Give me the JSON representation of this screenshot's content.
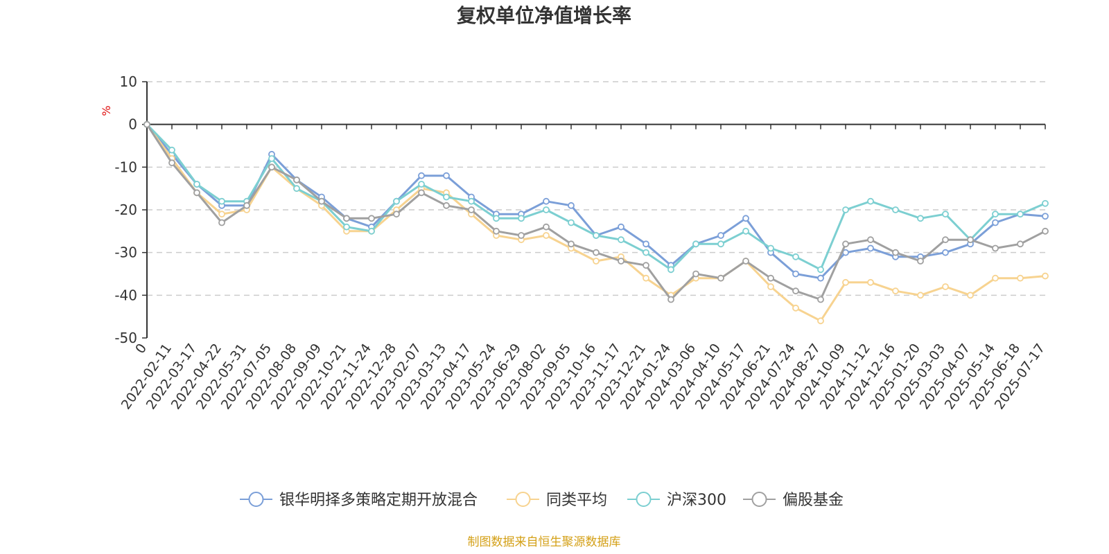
{
  "chart_data": {
    "type": "line",
    "title": "复权单位净值增长率",
    "ylabel": "%",
    "xlabel": "",
    "ylim": [
      -50,
      10
    ],
    "yticks": [
      10,
      0,
      -10,
      -20,
      -30,
      -40,
      -50
    ],
    "grid": true,
    "legend_position": "bottom",
    "x": [
      "0",
      "2022-02-11",
      "2022-03-17",
      "2022-04-22",
      "2022-05-31",
      "2022-07-05",
      "2022-08-08",
      "2022-09-09",
      "2022-10-21",
      "2022-11-24",
      "2022-12-28",
      "2023-02-07",
      "2023-03-13",
      "2023-04-17",
      "2023-05-24",
      "2023-06-29",
      "2023-08-02",
      "2023-09-05",
      "2023-10-16",
      "2023-11-17",
      "2023-12-21",
      "2024-01-24",
      "2024-03-06",
      "2024-04-10",
      "2024-05-17",
      "2024-06-21",
      "2024-07-24",
      "2024-08-27",
      "2024-10-09",
      "2024-11-12",
      "2024-12-16",
      "2025-01-20",
      "2025-03-03",
      "2025-04-07",
      "2025-05-14",
      "2025-06-18",
      "2025-07-17"
    ],
    "series": [
      {
        "name": "银华明择多策略定期开放混合",
        "color": "#7b9fd8",
        "values": [
          0,
          -7,
          -14,
          -19,
          -19,
          -7,
          -13,
          -17,
          -22,
          -24,
          -18,
          -12,
          -12,
          -17,
          -21,
          -21,
          -18,
          -19,
          -26,
          -24,
          -28,
          -33,
          -28,
          -26,
          -22,
          -30,
          -35,
          -36,
          -30,
          -29,
          -31,
          -31,
          -30,
          -28,
          -23,
          -21,
          -21.5
        ]
      },
      {
        "name": "同类平均",
        "color": "#f7d390",
        "values": [
          0,
          -8,
          -16,
          -21,
          -20,
          -10,
          -15,
          -19,
          -25,
          -25,
          -20,
          -15,
          -16,
          -21,
          -26,
          -27,
          -26,
          -29,
          -32,
          -31,
          -36,
          -40,
          -36,
          -36,
          -32,
          -38,
          -43,
          -46,
          -37,
          -37,
          -39,
          -40,
          -38,
          -40,
          -36,
          -36,
          -35.5
        ]
      },
      {
        "name": "沪深300",
        "color": "#7ccfd1",
        "values": [
          0,
          -6,
          -14,
          -18,
          -18,
          -8,
          -15,
          -18,
          -24,
          -25,
          -18,
          -14,
          -17,
          -18,
          -22,
          -22,
          -20,
          -23,
          -26,
          -27,
          -30,
          -34,
          -28,
          -28,
          -25,
          -29,
          -31,
          -34,
          -20,
          -18,
          -20,
          -22,
          -21,
          -27,
          -21,
          -21,
          -18.5
        ]
      },
      {
        "name": "偏股基金",
        "color": "#a0a0a0",
        "values": [
          0,
          -9,
          -16,
          -23,
          -19,
          -10,
          -13,
          -18,
          -22,
          -22,
          -21,
          -16,
          -19,
          -20,
          -25,
          -26,
          -24,
          -28,
          -30,
          -32,
          -33,
          -41,
          -35,
          -36,
          -32,
          -36,
          -39,
          -41,
          -28,
          -27,
          -30,
          -32,
          -27,
          -27,
          -29,
          -28,
          -25
        ]
      }
    ]
  },
  "source_text": "制图数据来自恒生聚源数据库"
}
